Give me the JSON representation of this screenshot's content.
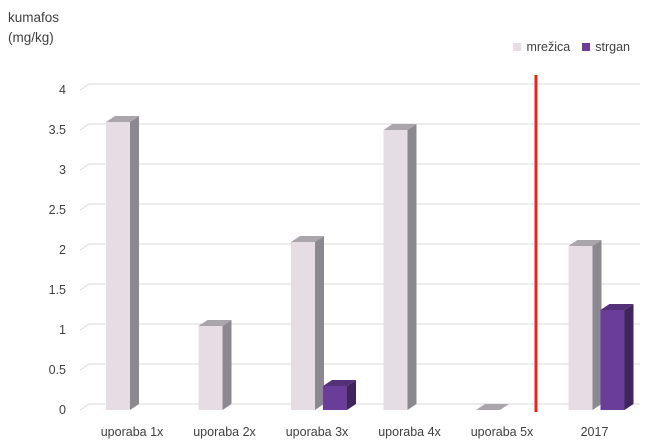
{
  "chart_data": {
    "type": "bar",
    "ylabel_line1": "kumafos",
    "ylabel_line2": "(mg/kg)",
    "categories": [
      "uporaba 1x",
      "uporaba 2x",
      "uporaba 3x",
      "uporaba 4x",
      "uporaba 5x",
      "2017"
    ],
    "series": [
      {
        "name": "mrežica",
        "values": [
          3.6,
          1.05,
          2.1,
          3.5,
          0.0,
          2.05
        ],
        "color": "#e6dde4"
      },
      {
        "name": "strgan",
        "values": [
          null,
          null,
          0.3,
          null,
          null,
          1.25
        ],
        "color": "#6a3d9a"
      }
    ],
    "ylim": [
      0,
      4
    ],
    "yticks": [
      "0",
      "0.5",
      "1",
      "1.5",
      "2",
      "2.5",
      "3",
      "3.5",
      "4"
    ],
    "grid": true,
    "legend_position": "top-right",
    "separator_color": "#e8221b"
  }
}
